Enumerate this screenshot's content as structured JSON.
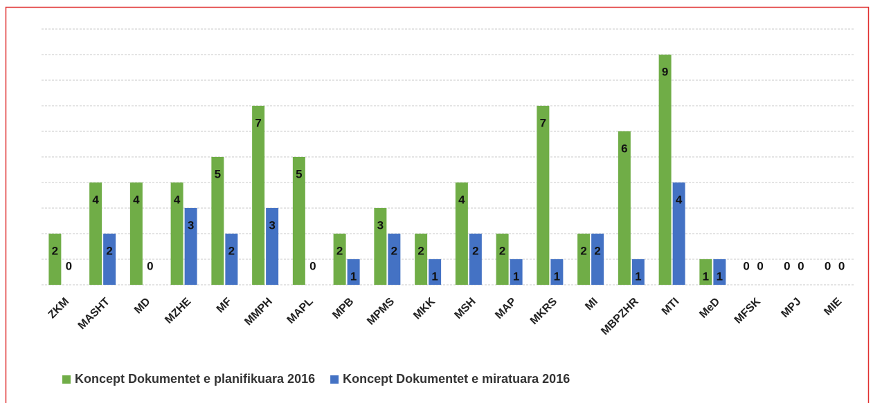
{
  "chart_data": {
    "type": "bar",
    "categories": [
      "ZKM",
      "MASHT",
      "MD",
      "MZHE",
      "MF",
      "MMPH",
      "MAPL",
      "MPB",
      "MPMS",
      "MKK",
      "MSH",
      "MAP",
      "MKRS",
      "MI",
      "MBPZHR",
      "MTI",
      "MeD",
      "MFSK",
      "MPJ",
      "MIE"
    ],
    "series": [
      {
        "name": "Koncept Dokumentet e planifikuara 2016",
        "color": "#70ad47",
        "values": [
          2,
          4,
          4,
          4,
          5,
          7,
          5,
          2,
          3,
          2,
          4,
          2,
          7,
          2,
          6,
          9,
          1,
          0,
          0,
          0
        ]
      },
      {
        "name": "Koncept Dokumentet e miratuara 2016",
        "color": "#4472c4",
        "values": [
          0,
          2,
          0,
          3,
          2,
          3,
          0,
          1,
          2,
          1,
          2,
          1,
          1,
          2,
          1,
          4,
          1,
          0,
          0,
          0
        ]
      }
    ],
    "ylim": [
      0,
      10
    ],
    "yticks": [
      0,
      1,
      2,
      3,
      4,
      5,
      6,
      7,
      8,
      9,
      10
    ],
    "grid": true,
    "legend": "bottom"
  }
}
